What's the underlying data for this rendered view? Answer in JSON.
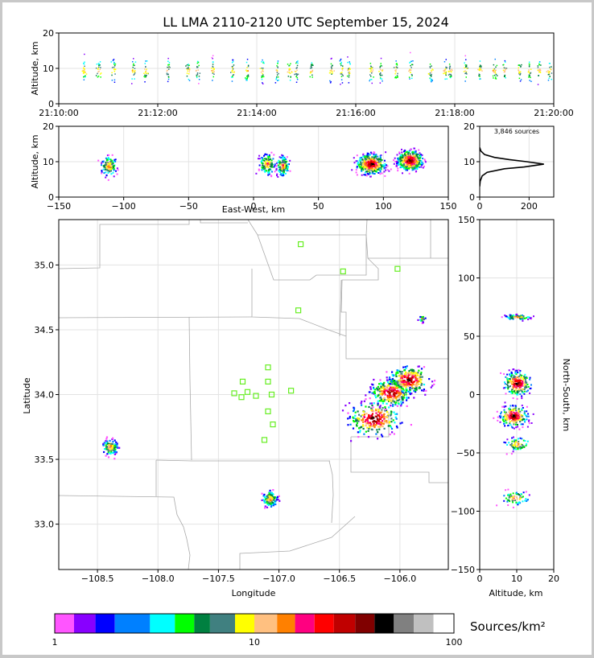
{
  "chart_data": [
    {
      "id": "alt-time",
      "type": "scatter",
      "title": "LL LMA 2110-2120 UTC September 15, 2024",
      "xlabel": "",
      "ylabel": "Altitude, km",
      "xlim": [
        0,
        10
      ],
      "ylim": [
        0,
        20
      ],
      "x_ticks": [
        "21:10:00",
        "21:12:00",
        "21:14:00",
        "21:16:00",
        "21:18:00",
        "21:20:00"
      ],
      "y_ticks": [
        "0",
        "10",
        "20"
      ],
      "clusters_minutes": [
        0.5,
        0.8,
        1.1,
        1.5,
        1.75,
        2.2,
        2.6,
        2.8,
        3.1,
        3.5,
        3.8,
        4.1,
        4.4,
        4.65,
        4.8,
        5.1,
        5.5,
        5.7,
        5.85,
        6.3,
        6.5,
        6.8,
        7.1,
        7.5,
        7.8,
        7.9,
        8.2,
        8.5,
        8.8,
        9.0,
        9.3,
        9.5,
        9.7,
        9.9
      ],
      "cluster_altitude_km": 9.5
    },
    {
      "id": "alt-ew",
      "type": "scatter",
      "xlabel": "East-West, km",
      "ylabel": "Altitude, km",
      "xlim": [
        -150,
        150
      ],
      "ylim": [
        0,
        20
      ],
      "x_ticks": [
        "−150",
        "−100",
        "−50",
        "0",
        "50",
        "100",
        "150"
      ],
      "y_ticks": [
        "0",
        "10",
        "20"
      ],
      "clusters": [
        {
          "x": -112,
          "z": 9,
          "spread": 5
        },
        {
          "x": 10,
          "z": 9.5,
          "spread": 5
        },
        {
          "x": 22,
          "z": 9,
          "spread": 4
        },
        {
          "x": 90,
          "z": 9.5,
          "spread": 9
        },
        {
          "x": 120,
          "z": 10.5,
          "spread": 8
        }
      ]
    },
    {
      "id": "histogram",
      "type": "line",
      "annotation": "3,846 sources",
      "xlim": [
        0,
        300
      ],
      "ylim": [
        0,
        20
      ],
      "x_ticks": [
        "0",
        "200"
      ],
      "y_ticks": [
        "0",
        "10",
        "20"
      ],
      "profile": [
        [
          0,
          3
        ],
        [
          2,
          4.5
        ],
        [
          10,
          6
        ],
        [
          30,
          7
        ],
        [
          100,
          8
        ],
        [
          180,
          8.5
        ],
        [
          260,
          9.3
        ],
        [
          190,
          10
        ],
        [
          120,
          10.6
        ],
        [
          60,
          11.2
        ],
        [
          20,
          12
        ],
        [
          5,
          13
        ],
        [
          0,
          14
        ]
      ]
    },
    {
      "id": "plan-view",
      "type": "scatter",
      "xlabel": "Longitude",
      "ylabel": "Latitude",
      "xlim": [
        -108.82,
        -105.6
      ],
      "ylim": [
        32.65,
        35.35
      ],
      "x_ticks": [
        "−108.5",
        "−108.0",
        "−107.5",
        "−107.0",
        "−106.5",
        "−106.0"
      ],
      "y_ticks": [
        "33.0",
        "33.5",
        "34.0",
        "34.5",
        "35.0"
      ],
      "stations": [
        [
          -106.82,
          35.16
        ],
        [
          -106.47,
          34.95
        ],
        [
          -106.02,
          34.97
        ],
        [
          -106.84,
          34.65
        ],
        [
          -107.09,
          34.21
        ],
        [
          -107.3,
          34.1
        ],
        [
          -107.09,
          34.1
        ],
        [
          -107.37,
          34.01
        ],
        [
          -107.26,
          34.02
        ],
        [
          -107.19,
          33.99
        ],
        [
          -107.31,
          33.98
        ],
        [
          -107.06,
          34.0
        ],
        [
          -106.9,
          34.03
        ],
        [
          -107.09,
          33.87
        ],
        [
          -107.05,
          33.77
        ],
        [
          -107.12,
          33.65
        ]
      ],
      "clusters": [
        {
          "lon": -108.4,
          "lat": 33.6,
          "spread": 0.05
        },
        {
          "lon": -107.08,
          "lat": 33.2,
          "spread": 0.05
        },
        {
          "lon": -106.22,
          "lat": 33.82,
          "spread": 0.09
        },
        {
          "lon": -106.08,
          "lat": 34.02,
          "spread": 0.07
        },
        {
          "lon": -105.93,
          "lat": 34.12,
          "spread": 0.07
        },
        {
          "lon": -105.82,
          "lat": 34.59,
          "spread": 0.02
        }
      ]
    },
    {
      "id": "alt-ns",
      "type": "scatter",
      "xlabel": "Altitude, km",
      "ylabel": "North-South, km",
      "xlim": [
        0,
        20
      ],
      "ylim": [
        -150,
        150
      ],
      "x_ticks": [
        "0",
        "10",
        "20"
      ],
      "y_ticks": [
        "−150",
        "−100",
        "−50",
        "0",
        "50",
        "100",
        "150"
      ],
      "clusters": [
        {
          "z": 10,
          "ns": 67,
          "spread": 2
        },
        {
          "z": 10,
          "ns": 10,
          "spread": 9
        },
        {
          "z": 9,
          "ns": -18,
          "spread": 8
        },
        {
          "z": 10,
          "ns": -42,
          "spread": 5
        },
        {
          "z": 9.5,
          "ns": -88,
          "spread": 5
        }
      ]
    }
  ],
  "colorbar": {
    "label": "Sources/km²",
    "ticks": [
      "1",
      "10",
      "100"
    ],
    "colors": [
      "#ff55ff",
      "#8800ff",
      "#0000ff",
      "#0080ff",
      "#00ffff",
      "#00ff00",
      "#008040",
      "#408080",
      "#ffff00",
      "#ffc080",
      "#ff8000",
      "#ff0080",
      "#ff0000",
      "#c00000",
      "#800000",
      "#000000",
      "#808080",
      "#c0c0c0",
      "#ffffff"
    ],
    "value_edges": [
      1,
      1.25,
      1.6,
      2,
      3,
      4,
      5,
      6,
      8,
      10,
      13,
      16,
      20,
      25,
      32,
      40,
      50,
      63,
      79,
      100
    ]
  },
  "colors": {
    "station": "#66ee22",
    "boundary": "#aaaaaa",
    "grid": "#e3e3e3",
    "frame_border": "#c8c8c8"
  }
}
